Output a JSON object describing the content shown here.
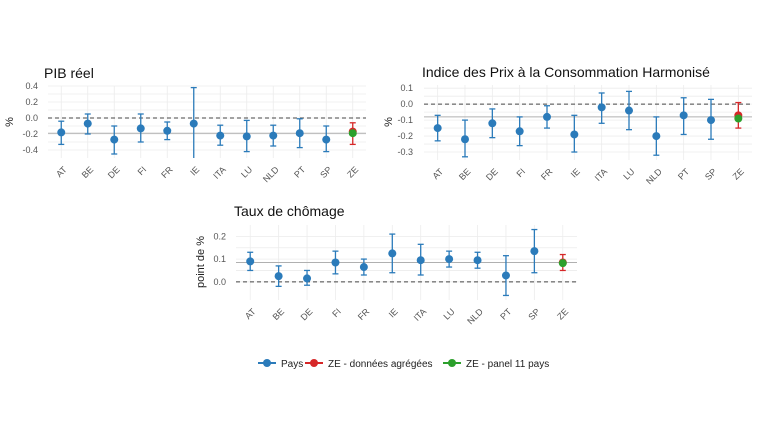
{
  "colors": {
    "pays": "#2b7bba",
    "agg": "#d62728",
    "panel": "#2ca02c"
  },
  "legend": [
    {
      "label": "Pays",
      "color": "#2b7bba"
    },
    {
      "label": "ZE - données agrégées",
      "color": "#d62728"
    },
    {
      "label": "ZE - panel 11 pays",
      "color": "#2ca02c"
    }
  ],
  "chart_data": [
    {
      "type": "scatter",
      "title": "PIB réel",
      "ylabel": "%",
      "ylim": [
        -0.5,
        0.4
      ],
      "yticks": [
        0.4,
        0.2,
        0.0,
        -0.2,
        -0.4
      ],
      "ytick_labels": [
        "0.4",
        "0.2",
        "0.0",
        "-0.2",
        "-0.4"
      ],
      "categories": [
        "AT",
        "BE",
        "DE",
        "FI",
        "FR",
        "IE",
        "ITA",
        "LU",
        "NLD",
        "PT",
        "SP",
        "ZE"
      ],
      "values": [
        -0.18,
        -0.07,
        -0.27,
        -0.13,
        -0.16,
        -0.07,
        -0.22,
        -0.23,
        -0.22,
        -0.19,
        -0.27,
        -0.17
      ],
      "lower": [
        -0.33,
        -0.2,
        -0.45,
        -0.3,
        -0.27,
        -0.55,
        -0.34,
        -0.42,
        -0.35,
        -0.37,
        -0.42,
        -0.33
      ],
      "upper": [
        -0.04,
        0.05,
        -0.1,
        0.05,
        -0.05,
        0.38,
        -0.09,
        -0.03,
        -0.09,
        -0.01,
        -0.1,
        -0.06
      ],
      "panel_value": -0.19,
      "reference_line": -0.19,
      "zero_line": 0
    },
    {
      "type": "scatter",
      "title": "Indice des Prix à la Consommation Harmonisé",
      "ylabel": "%",
      "ylim": [
        -0.35,
        0.12
      ],
      "yticks": [
        0.1,
        0.0,
        -0.1,
        -0.2,
        -0.3
      ],
      "ytick_labels": [
        "0.1",
        "0.0",
        "-0.1",
        "-0.2",
        "-0.3"
      ],
      "categories": [
        "AT",
        "BE",
        "DE",
        "FI",
        "FR",
        "IE",
        "ITA",
        "LU",
        "NLD",
        "PT",
        "SP",
        "ZE"
      ],
      "values": [
        -0.15,
        -0.22,
        -0.12,
        -0.17,
        -0.08,
        -0.19,
        -0.02,
        -0.04,
        -0.2,
        -0.07,
        -0.1,
        -0.07
      ],
      "lower": [
        -0.23,
        -0.33,
        -0.21,
        -0.26,
        -0.15,
        -0.3,
        -0.12,
        -0.16,
        -0.32,
        -0.19,
        -0.22,
        -0.15
      ],
      "upper": [
        -0.07,
        -0.1,
        -0.03,
        -0.08,
        -0.01,
        -0.07,
        0.07,
        0.08,
        -0.08,
        0.04,
        0.03,
        0.01
      ],
      "panel_value": -0.09,
      "reference_line": -0.08,
      "zero_line": 0
    },
    {
      "type": "scatter",
      "title": "Taux de chômage",
      "ylabel": "point de %",
      "ylim": [
        -0.08,
        0.25
      ],
      "yticks": [
        0.2,
        0.1,
        0.0
      ],
      "ytick_labels": [
        "0.2",
        "0.1",
        "0.0"
      ],
      "categories": [
        "AT",
        "BE",
        "DE",
        "FI",
        "FR",
        "IE",
        "ITA",
        "LU",
        "NLD",
        "PT",
        "SP",
        "ZE"
      ],
      "values": [
        0.09,
        0.025,
        0.015,
        0.085,
        0.065,
        0.125,
        0.095,
        0.1,
        0.095,
        0.028,
        0.135,
        0.085
      ],
      "lower": [
        0.05,
        -0.02,
        -0.015,
        0.035,
        0.03,
        0.04,
        0.03,
        0.065,
        0.06,
        -0.06,
        0.04,
        0.05
      ],
      "upper": [
        0.13,
        0.07,
        0.05,
        0.135,
        0.1,
        0.21,
        0.165,
        0.135,
        0.13,
        0.115,
        0.23,
        0.12
      ],
      "panel_value": 0.082,
      "reference_line": 0.085,
      "zero_line": 0
    }
  ]
}
